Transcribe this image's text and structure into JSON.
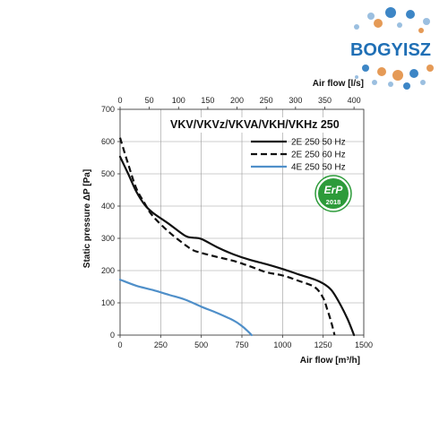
{
  "logo": {
    "text": "BOGYISZ",
    "color": "#1f6fb5",
    "dot_colors": [
      "#e59a56",
      "#3d86c6",
      "#9bbfe0"
    ]
  },
  "chart_data": {
    "type": "line",
    "title": "VKV/VKVz/VKVA/VKH/VKHz 250",
    "xlabel": "Air flow [m³/h]",
    "x2label": "Air flow [l/s]",
    "ylabel": "Static pressure ΔP [Pa]",
    "xlim": [
      0,
      1500
    ],
    "ylim": [
      0,
      700
    ],
    "x2lim": [
      0,
      416.67
    ],
    "x_ticks": [
      0,
      250,
      500,
      750,
      1000,
      1250,
      1500
    ],
    "x2_ticks": [
      0,
      50,
      100,
      150,
      200,
      250,
      300,
      350,
      400
    ],
    "y_ticks": [
      0,
      100,
      200,
      300,
      400,
      500,
      600,
      700
    ],
    "grid": true,
    "legend_position": "top-right",
    "series": [
      {
        "name": "2E 250 50 Hz",
        "color": "#111111",
        "dash": "solid",
        "x": [
          0,
          50,
          100,
          150,
          200,
          300,
          400,
          450,
          500,
          600,
          700,
          800,
          900,
          1000,
          1100,
          1200,
          1250,
          1300,
          1350,
          1400,
          1440
        ],
        "y": [
          553,
          500,
          445,
          405,
          380,
          345,
          308,
          302,
          298,
          272,
          250,
          233,
          220,
          205,
          188,
          172,
          160,
          140,
          100,
          50,
          0
        ]
      },
      {
        "name": "2E 250 60 Hz",
        "color": "#111111",
        "dash": "dashed",
        "x": [
          0,
          50,
          100,
          150,
          200,
          300,
          400,
          450,
          500,
          600,
          700,
          800,
          900,
          1000,
          1100,
          1200,
          1250,
          1275,
          1300,
          1320
        ],
        "y": [
          612,
          530,
          455,
          410,
          370,
          320,
          280,
          263,
          255,
          242,
          230,
          213,
          195,
          185,
          168,
          148,
          115,
          80,
          40,
          0
        ]
      },
      {
        "name": "4E 250 50 Hz",
        "color": "#4f8fc9",
        "dash": "solid",
        "x": [
          0,
          100,
          200,
          300,
          400,
          500,
          600,
          700,
          750,
          780,
          810
        ],
        "y": [
          172,
          153,
          140,
          125,
          110,
          88,
          68,
          45,
          28,
          15,
          0
        ]
      }
    ]
  },
  "erp_badge": {
    "text": "ErP",
    "year": "2018",
    "color": "#2d9b3a"
  }
}
